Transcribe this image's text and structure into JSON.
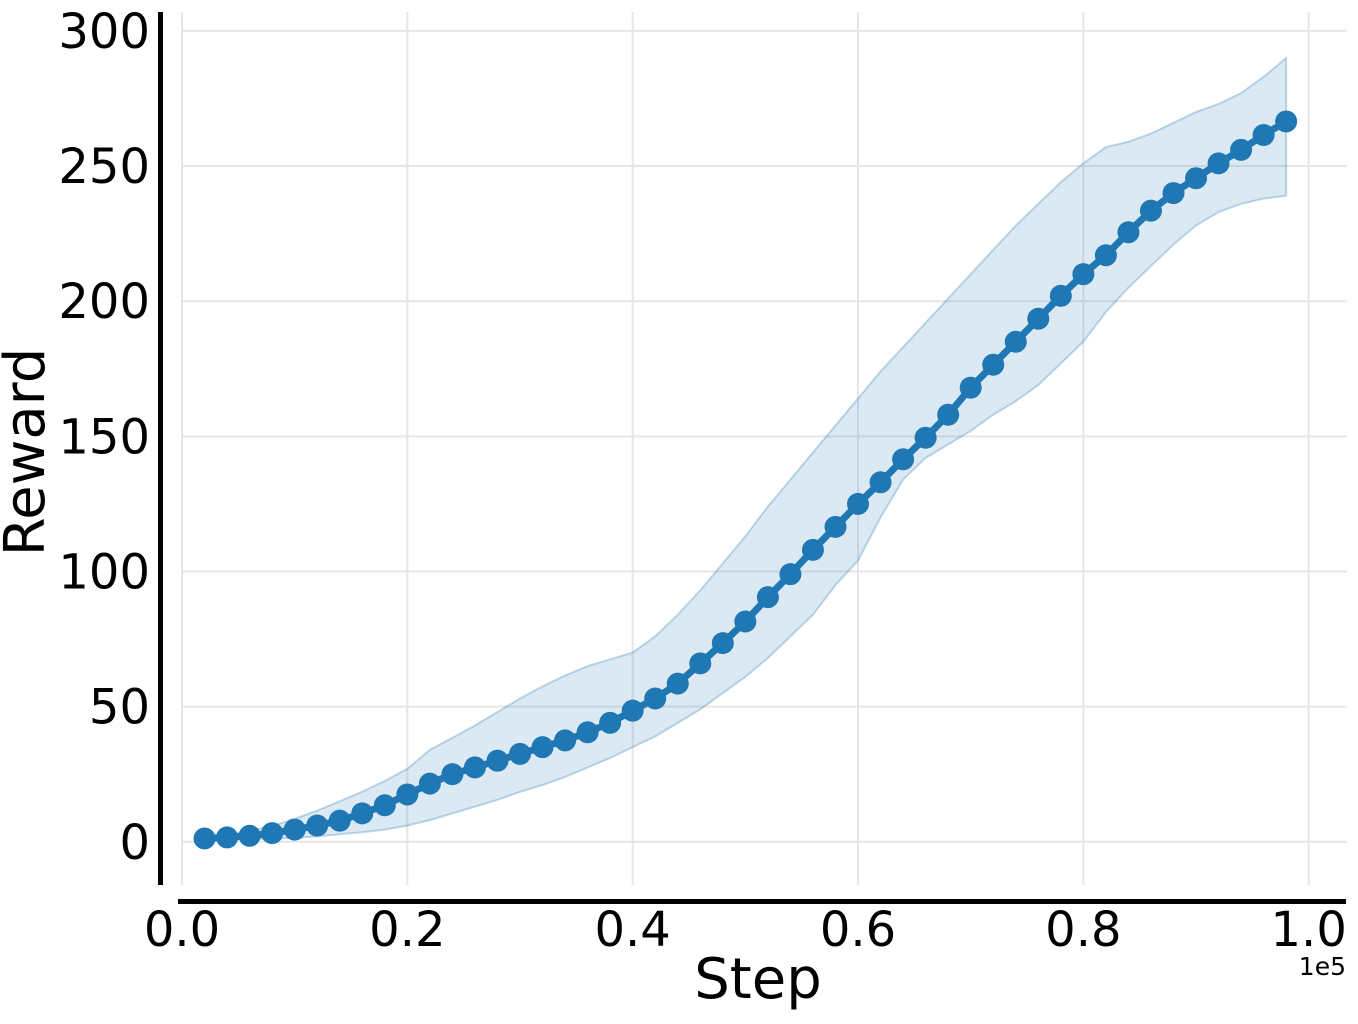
{
  "chart_data": {
    "type": "line",
    "title": "",
    "xlabel": "Step",
    "ylabel": "Reward",
    "x_offset_text": "1e5",
    "legend": null,
    "grid": true,
    "xlim": [
      0,
      103400
    ],
    "ylim": [
      -16,
      307
    ],
    "xticks": {
      "values": [
        0,
        20000,
        40000,
        60000,
        80000,
        100000
      ],
      "labels": [
        "0.0",
        "0.2",
        "0.4",
        "0.6",
        "0.8",
        "1.0"
      ]
    },
    "yticks": {
      "values": [
        0,
        50,
        100,
        150,
        200,
        250,
        300
      ],
      "labels": [
        "0",
        "50",
        "100",
        "150",
        "200",
        "250",
        "300"
      ]
    },
    "x": [
      2000,
      4000,
      6000,
      8000,
      10000,
      12000,
      14000,
      16000,
      18000,
      20000,
      22000,
      24000,
      26000,
      28000,
      30000,
      32000,
      34000,
      36000,
      38000,
      40000,
      42000,
      44000,
      46000,
      48000,
      50000,
      52000,
      54000,
      56000,
      58000,
      60000,
      62000,
      64000,
      66000,
      68000,
      70000,
      72000,
      74000,
      76000,
      78000,
      80000,
      82000,
      84000,
      86000,
      88000,
      90000,
      92000,
      94000,
      96000,
      98000
    ],
    "series": [
      {
        "name": "Reward",
        "color": "#1f77b4",
        "marker": "circle",
        "values": [
          1.2,
          1.6,
          2.2,
          3.2,
          4.5,
          6.0,
          7.8,
          10.5,
          13.5,
          17.5,
          21.5,
          25.0,
          27.5,
          30.0,
          32.5,
          35.0,
          37.5,
          40.5,
          44.0,
          48.5,
          53.0,
          58.5,
          66.0,
          73.5,
          81.5,
          90.5,
          99.0,
          108.0,
          116.5,
          125.0,
          133.0,
          141.5,
          149.5,
          158.0,
          168.0,
          176.5,
          185.0,
          193.5,
          202.0,
          210.0,
          217.0,
          225.5,
          233.5,
          240.0,
          245.5,
          251.0,
          256.0,
          261.5,
          266.5
        ],
        "band_lower": [
          0.5,
          0.8,
          1.0,
          1.2,
          1.5,
          2.0,
          2.8,
          3.5,
          4.5,
          6.0,
          8.0,
          10.5,
          13.0,
          15.5,
          18.5,
          21.0,
          24.0,
          27.5,
          31.0,
          35.0,
          39.0,
          44.0,
          49.0,
          55.0,
          61.0,
          68.0,
          76.0,
          84.0,
          95.0,
          104.0,
          120.0,
          134.0,
          142.0,
          147.0,
          152.0,
          158.0,
          163.0,
          169.0,
          177.0,
          185.0,
          196.0,
          205.0,
          213.0,
          221.0,
          228.0,
          233.0,
          236.0,
          238.0,
          239.0
        ],
        "band_upper": [
          2.0,
          2.8,
          4.0,
          5.8,
          8.5,
          11.5,
          15.0,
          18.5,
          22.5,
          27.0,
          34.0,
          38.5,
          43.0,
          48.0,
          53.0,
          57.5,
          61.5,
          65.0,
          67.5,
          70.0,
          76.0,
          84.0,
          93.0,
          103.0,
          113.0,
          124.0,
          134.0,
          144.0,
          154.0,
          164.0,
          174.0,
          183.0,
          192.0,
          201.0,
          210.0,
          219.0,
          228.0,
          236.0,
          244.0,
          251.0,
          257.0,
          259.0,
          262.0,
          266.0,
          270.0,
          273.0,
          277.0,
          283.0,
          290.0
        ]
      }
    ]
  },
  "style": {
    "background": "#ffffff",
    "line_color": "#1f77b4",
    "band_fill_color": "#1f77b4",
    "band_fill_alpha": 0.16,
    "band_edge_alpha": 0.28,
    "grid_color": "#e6e6e6",
    "spine_color": "#000000",
    "text_color": "#000000"
  }
}
